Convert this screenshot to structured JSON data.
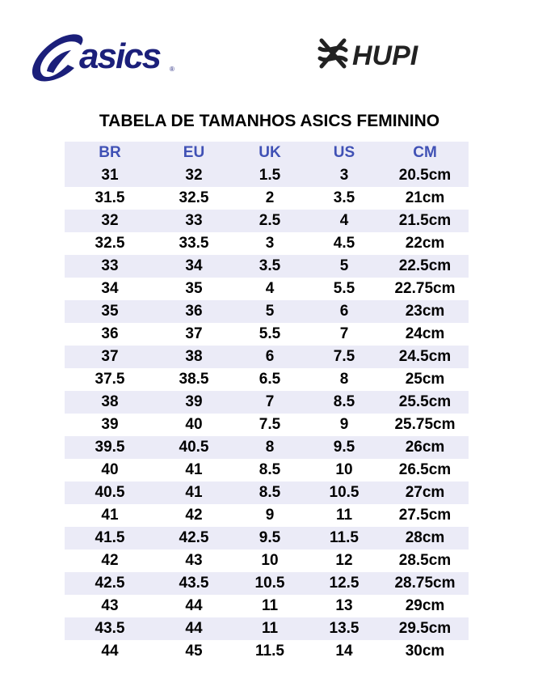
{
  "logos": {
    "left": "asics",
    "right": "HUPI"
  },
  "colors": {
    "asics_blue": "#1b1f7a",
    "header_text": "#4051b5",
    "row_shade": "#ebebf7"
  },
  "title": "TABELA DE TAMANHOS ASICS FEMININO",
  "table": {
    "headers": [
      "BR",
      "EU",
      "UK",
      "US",
      "CM"
    ],
    "rows": [
      [
        "31",
        "32",
        "1.5",
        "3",
        "20.5cm"
      ],
      [
        "31.5",
        "32.5",
        "2",
        "3.5",
        "21cm"
      ],
      [
        "32",
        "33",
        "2.5",
        "4",
        "21.5cm"
      ],
      [
        "32.5",
        "33.5",
        "3",
        "4.5",
        "22cm"
      ],
      [
        "33",
        "34",
        "3.5",
        "5",
        "22.5cm"
      ],
      [
        "34",
        "35",
        "4",
        "5.5",
        "22.75cm"
      ],
      [
        "35",
        "36",
        "5",
        "6",
        "23cm"
      ],
      [
        "36",
        "37",
        "5.5",
        "7",
        "24cm"
      ],
      [
        "37",
        "38",
        "6",
        "7.5",
        "24.5cm"
      ],
      [
        "37.5",
        "38.5",
        "6.5",
        "8",
        "25cm"
      ],
      [
        "38",
        "39",
        "7",
        "8.5",
        "25.5cm"
      ],
      [
        "39",
        "40",
        "7.5",
        "9",
        "25.75cm"
      ],
      [
        "39.5",
        "40.5",
        "8",
        "9.5",
        "26cm"
      ],
      [
        "40",
        "41",
        "8.5",
        "10",
        "26.5cm"
      ],
      [
        "40.5",
        "41",
        "8.5",
        "10.5",
        "27cm"
      ],
      [
        "41",
        "42",
        "9",
        "11",
        "27.5cm"
      ],
      [
        "41.5",
        "42.5",
        "9.5",
        "11.5",
        "28cm"
      ],
      [
        "42",
        "43",
        "10",
        "12",
        "28.5cm"
      ],
      [
        "42.5",
        "43.5",
        "10.5",
        "12.5",
        "28.75cm"
      ],
      [
        "43",
        "44",
        "11",
        "13",
        "29cm"
      ],
      [
        "43.5",
        "44",
        "11",
        "13.5",
        "29.5cm"
      ],
      [
        "44",
        "45",
        "11.5",
        "14",
        "30cm"
      ]
    ]
  }
}
